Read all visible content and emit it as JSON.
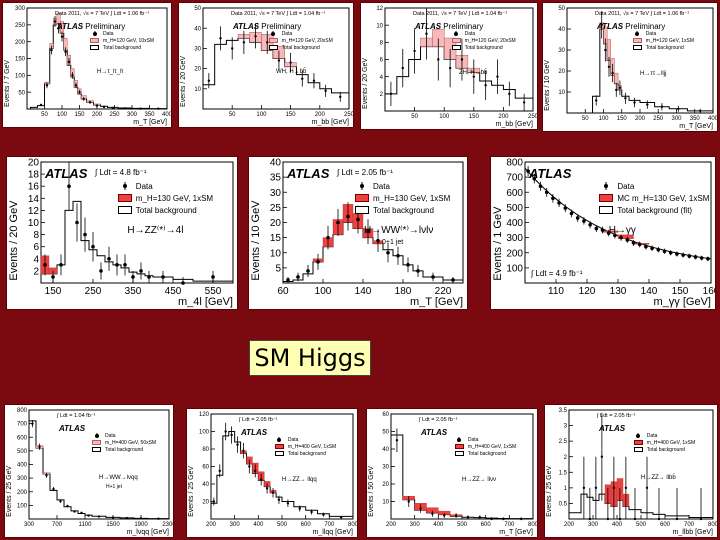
{
  "caption": "SM Higgs",
  "chart_data": [
    {
      "id": "p1",
      "type": "histogram",
      "atlas": "ATLAS",
      "atlas_extra": "Preliminary",
      "data_text": "Data 2011, √s = 7 TeV  ∫ Ldt = 1.06 fb⁻¹",
      "ylabel": "Events / 7 GeV",
      "xlabel": "m_T [GeV]",
      "process": "H→τ_lτ_h",
      "xlim": [
        0,
        400
      ],
      "ylim": [
        0,
        300
      ],
      "xticks": [
        50,
        100,
        150,
        200,
        250,
        300,
        350,
        400
      ],
      "yticks": [
        50,
        100,
        150,
        200,
        250,
        300
      ],
      "legend": [
        "Data",
        "m_H=120 GeV, 10xSM",
        "Total background"
      ],
      "bkg_edges": [
        10,
        30,
        50,
        65,
        75,
        85,
        95,
        105,
        115,
        125,
        135,
        145,
        155,
        170,
        190,
        210,
        230,
        260,
        300,
        350,
        400
      ],
      "bkg": [
        5,
        10,
        75,
        180,
        250,
        255,
        225,
        175,
        130,
        95,
        65,
        45,
        30,
        20,
        12,
        8,
        5,
        3,
        2,
        1
      ],
      "sig": [
        0,
        0,
        5,
        15,
        20,
        30,
        35,
        35,
        30,
        25,
        20,
        15,
        10,
        5,
        3,
        0,
        0,
        0,
        0,
        0
      ],
      "data_x": [
        40,
        57,
        70,
        80,
        90,
        100,
        110,
        120,
        130,
        140,
        150,
        162,
        180,
        200,
        220,
        245,
        280,
        325,
        375
      ],
      "data_y": [
        12,
        70,
        175,
        260,
        240,
        215,
        170,
        140,
        100,
        70,
        50,
        30,
        20,
        10,
        6,
        3,
        2,
        1,
        1
      ],
      "sig_color": "#f6b8b8"
    },
    {
      "id": "p2",
      "type": "histogram",
      "atlas": "ATLAS",
      "atlas_extra": "Preliminary",
      "data_text": "Data 2011, √s = 7 TeV  ∫ Ldt = 1.04 fb⁻¹",
      "ylabel": "Events / 20 GeV",
      "xlabel": "m_bb [GeV]",
      "process": "WH, H→bb̄",
      "xlim": [
        0,
        250
      ],
      "ylim": [
        0,
        50
      ],
      "xticks": [
        50,
        100,
        150,
        200,
        250
      ],
      "yticks": [
        10,
        20,
        30,
        40,
        50
      ],
      "legend": [
        "Data",
        "m_H=120 GeV, 20xSM",
        "Total background"
      ],
      "bkg_edges": [
        0,
        20,
        40,
        60,
        80,
        100,
        120,
        140,
        160,
        180,
        200,
        220,
        250
      ],
      "bkg": [
        12,
        32,
        34,
        35,
        33,
        29,
        25,
        21,
        17,
        13,
        10,
        8
      ],
      "sig": [
        0,
        0,
        0,
        2,
        5,
        8,
        6,
        2,
        0,
        0,
        0,
        0
      ],
      "data_x": [
        10,
        30,
        50,
        70,
        90,
        110,
        130,
        150,
        170,
        190,
        210,
        235
      ],
      "data_y": [
        14,
        35,
        30,
        33,
        36,
        33,
        24,
        23,
        15,
        14,
        9,
        6
      ],
      "sig_color": "#f6b8b8"
    },
    {
      "id": "p3",
      "type": "histogram",
      "atlas": "ATLAS",
      "atlas_extra": "Preliminary",
      "data_text": "Data 2011, √s = 7 TeV  ∫ Ldt = 1.04 fb⁻¹",
      "ylabel": "Events / 20 GeV",
      "xlabel": "m_bb [GeV]",
      "process": "ZH, H→bb̄",
      "xlim": [
        0,
        250
      ],
      "ylim": [
        0,
        12
      ],
      "xticks": [
        50,
        100,
        150,
        200,
        250
      ],
      "yticks": [
        2,
        4,
        6,
        8,
        10,
        12
      ],
      "legend": [
        "Data",
        "m_H=120 GeV, 20xSM",
        "Total background"
      ],
      "bkg_edges": [
        0,
        20,
        40,
        60,
        80,
        100,
        120,
        140,
        160,
        180,
        200,
        220,
        250
      ],
      "bkg": [
        2,
        4,
        6,
        7.5,
        7.5,
        6,
        5,
        4.5,
        3.5,
        3,
        2.5,
        1.5
      ],
      "sig": [
        0,
        0,
        0,
        1,
        2,
        2.5,
        1.5,
        0.5,
        0,
        0,
        0,
        0
      ],
      "data_x": [
        10,
        30,
        50,
        70,
        90,
        110,
        130,
        150,
        170,
        190,
        210,
        235
      ],
      "data_y": [
        2,
        5,
        7,
        9,
        6,
        5,
        6,
        4,
        3,
        4,
        2,
        1
      ],
      "sig_color": "#f6b8b8"
    },
    {
      "id": "p4",
      "type": "histogram",
      "atlas": "ATLAS",
      "atlas_extra": "Preliminary",
      "data_text": "Data 2011, √s = 7 TeV  ∫ Ldt = 1.06 fb⁻¹",
      "ylabel": "Events / 10 GeV",
      "xlabel": "m_T [GeV]",
      "process": "H→ττ→lljj",
      "xlim": [
        0,
        400
      ],
      "ylim": [
        0,
        50
      ],
      "xticks": [
        50,
        100,
        150,
        200,
        250,
        300,
        350,
        400
      ],
      "yticks": [
        10,
        20,
        30,
        40,
        50
      ],
      "legend": [
        "Data",
        "m_H=120 GeV, 1xSM",
        "Total background"
      ],
      "bkg_edges": [
        70,
        90,
        100,
        110,
        120,
        130,
        140,
        150,
        170,
        200,
        240,
        280,
        330,
        400
      ],
      "bkg": [
        8,
        40,
        33,
        25,
        18,
        14,
        11,
        8,
        6,
        5,
        3,
        2,
        1
      ],
      "sig": [
        0,
        3,
        8,
        10,
        8,
        5,
        2,
        0,
        0,
        0,
        0,
        0,
        0
      ],
      "data_x": [
        80,
        95,
        105,
        115,
        125,
        135,
        145,
        160,
        185,
        220,
        260,
        305,
        365
      ],
      "data_y": [
        6,
        42,
        30,
        22,
        19,
        11,
        12,
        7,
        5,
        4,
        3,
        2,
        1
      ],
      "sig_color": "#f6b8b8"
    },
    {
      "id": "p5",
      "type": "histogram",
      "atlas": "ATLAS",
      "atlas_extra": "",
      "data_text": "∫ Ldt = 4.8 fb⁻¹",
      "ylabel": "Events / 20 GeV",
      "xlabel": "m_4l [GeV]",
      "process": "H→ZZ⁽*⁾→4l",
      "xlim": [
        120,
        600
      ],
      "ylim": [
        0,
        20
      ],
      "xticks": [
        150,
        250,
        350,
        450,
        550
      ],
      "yticks": [
        2,
        4,
        6,
        8,
        10,
        12,
        14,
        16,
        18,
        20
      ],
      "legend": [
        "Data",
        "m_H=130 GeV, 1xSM",
        "Total background"
      ],
      "bkg_edges": [
        120,
        140,
        160,
        180,
        200,
        220,
        240,
        260,
        280,
        300,
        320,
        340,
        360,
        380,
        400,
        450,
        500,
        600
      ],
      "bkg": [
        1.5,
        1.5,
        3,
        12,
        13.5,
        7,
        5.5,
        4.5,
        3.5,
        3,
        2.5,
        1.8,
        1.5,
        1.2,
        1,
        0.6,
        0.3
      ],
      "sig": [
        3,
        1,
        0,
        0,
        0,
        0,
        0,
        0,
        0,
        0,
        0,
        0,
        0,
        0,
        0,
        0,
        0
      ],
      "data_x": [
        130,
        150,
        170,
        190,
        210,
        230,
        250,
        270,
        290,
        310,
        330,
        350,
        370,
        390,
        425,
        475,
        550
      ],
      "data_y": [
        3,
        1,
        3,
        16,
        10,
        8,
        6,
        2,
        4,
        3,
        3,
        1,
        2,
        1,
        1,
        0,
        1
      ],
      "sig_color": "#f04040"
    },
    {
      "id": "p6",
      "type": "histogram",
      "atlas": "ATLAS",
      "atlas_extra": "",
      "data_text": "∫ Ldt = 2.05 fb⁻¹",
      "ylabel": "Events / 10 GeV",
      "xlabel": "m_T [GeV]",
      "process": "H→WW⁽*⁾→lνlν",
      "process2": "0+1 jet",
      "xlim": [
        60,
        240
      ],
      "ylim": [
        0,
        40
      ],
      "xticks": [
        60,
        100,
        140,
        180,
        220
      ],
      "yticks": [
        5,
        10,
        15,
        20,
        25,
        30,
        35,
        40
      ],
      "legend": [
        "Data",
        "m_H=130 GeV, 1xSM",
        "Total background"
      ],
      "bkg_edges": [
        60,
        70,
        80,
        90,
        100,
        110,
        120,
        130,
        140,
        150,
        160,
        170,
        180,
        190,
        200,
        220,
        240
      ],
      "bkg": [
        0.5,
        1,
        3,
        7,
        12,
        16,
        20,
        18,
        15,
        13,
        11,
        9,
        6,
        4,
        2,
        1
      ],
      "sig": [
        0,
        0,
        0,
        1,
        3,
        5,
        6,
        5,
        3,
        1,
        0,
        0,
        0,
        0,
        0,
        0
      ],
      "data_x": [
        65,
        75,
        85,
        95,
        105,
        115,
        125,
        135,
        145,
        155,
        165,
        175,
        185,
        195,
        210,
        230
      ],
      "data_y": [
        1,
        2,
        4,
        7,
        15,
        20,
        22,
        21,
        17,
        14,
        10,
        9,
        6,
        4,
        2,
        1
      ],
      "sig_color": "#f04040"
    },
    {
      "id": "p7",
      "type": "histogram",
      "atlas": "ATLAS",
      "atlas_extra": "",
      "data_text": "∫ Ldt = 4.9 fb⁻¹",
      "ylabel": "Events / 1 GeV",
      "xlabel": "m_γγ [GeV]",
      "process": "H→γγ",
      "xlim": [
        100,
        160
      ],
      "ylim": [
        0,
        800
      ],
      "xticks": [
        110,
        120,
        130,
        140,
        150,
        160
      ],
      "yticks": [
        100,
        200,
        300,
        400,
        500,
        600,
        700,
        800
      ],
      "legend": [
        "Data",
        "MC m_H=130 GeV, 1xSM",
        "Total background (fit)"
      ],
      "bkg_edges": [
        100,
        105,
        110,
        115,
        120,
        125,
        130,
        135,
        140,
        145,
        150,
        155,
        160
      ],
      "bkg": [
        700,
        600,
        510,
        440,
        380,
        330,
        290,
        255,
        225,
        200,
        180,
        165
      ],
      "sig": [
        0,
        0,
        0,
        0,
        0,
        10,
        25,
        5,
        0,
        0,
        0,
        0
      ],
      "data_x": [
        101,
        103,
        105,
        107,
        109,
        111,
        113,
        115,
        117,
        119,
        121,
        123,
        125,
        127,
        129,
        131,
        133,
        135,
        137,
        139,
        141,
        143,
        145,
        147,
        149,
        151,
        153,
        155,
        157,
        159
      ],
      "data_y": [
        740,
        690,
        640,
        600,
        560,
        530,
        495,
        460,
        430,
        410,
        385,
        360,
        350,
        330,
        315,
        300,
        285,
        265,
        255,
        240,
        230,
        220,
        210,
        200,
        192,
        185,
        178,
        172,
        165,
        160
      ],
      "curve": true,
      "sig_color": "#f04040"
    },
    {
      "id": "p8",
      "type": "histogram",
      "atlas": "ATLAS",
      "atlas_extra": "",
      "data_text": "∫ Ldt = 1.04 fb⁻¹",
      "ylabel": "Events / 25 GeV",
      "xlabel": "m_lνqq [GeV]",
      "process": "H→WW→lνqq",
      "process2": "H+1 jet",
      "xlim": [
        300,
        2300
      ],
      "ylim": [
        0,
        800
      ],
      "xticks": [
        300,
        700,
        1100,
        1500,
        1900,
        2300
      ],
      "yticks": [
        100,
        200,
        300,
        400,
        500,
        600,
        700,
        800
      ],
      "legend": [
        "Data",
        "m_H=400 GeV, 50xSM",
        "Total background"
      ],
      "bkg_edges": [
        300,
        400,
        500,
        600,
        700,
        800,
        900,
        1000,
        1100,
        1200,
        1400,
        1600,
        1800,
        2000,
        2300
      ],
      "bkg": [
        720,
        520,
        330,
        210,
        140,
        90,
        60,
        40,
        28,
        20,
        12,
        8,
        5,
        3
      ],
      "sig": [
        0,
        20,
        10,
        0,
        0,
        0,
        0,
        0,
        0,
        0,
        0,
        0,
        0,
        0
      ],
      "data_x": [
        350,
        450,
        550,
        650,
        750,
        850,
        950,
        1050,
        1150,
        1300,
        1500,
        1700,
        1900,
        2150
      ],
      "data_y": [
        700,
        530,
        320,
        220,
        130,
        95,
        55,
        45,
        25,
        18,
        10,
        7,
        4,
        2
      ],
      "sig_color": "#f6b8b8"
    },
    {
      "id": "p9",
      "type": "histogram",
      "atlas": "ATLAS",
      "atlas_extra": "",
      "data_text": "∫ Ldt = 2.05 fb⁻¹",
      "ylabel": "Events / 25 GeV",
      "xlabel": "m_llqq [GeV]",
      "process": "H→ZZ→ llqq",
      "xlim": [
        200,
        800
      ],
      "ylim": [
        0,
        120
      ],
      "xticks": [
        200,
        300,
        400,
        500,
        600,
        700,
        800
      ],
      "yticks": [
        20,
        40,
        60,
        80,
        100,
        120
      ],
      "legend": [
        "Data",
        "m_H=400 GeV, 1xSM",
        "Total background"
      ],
      "bkg_edges": [
        200,
        225,
        250,
        275,
        300,
        325,
        350,
        375,
        400,
        425,
        450,
        475,
        500,
        550,
        600,
        650,
        700,
        800
      ],
      "bkg": [
        18,
        50,
        95,
        100,
        88,
        75,
        63,
        52,
        44,
        37,
        30,
        25,
        20,
        14,
        10,
        6,
        3
      ],
      "sig": [
        0,
        0,
        0,
        0,
        0,
        3,
        8,
        12,
        10,
        6,
        3,
        0,
        0,
        0,
        0,
        0,
        0
      ],
      "data_x": [
        212,
        237,
        262,
        287,
        312,
        337,
        362,
        387,
        412,
        437,
        462,
        487,
        525,
        575,
        625,
        675,
        750
      ],
      "data_y": [
        20,
        55,
        100,
        96,
        85,
        78,
        60,
        55,
        45,
        35,
        30,
        22,
        18,
        12,
        8,
        5,
        2
      ],
      "sig_color": "#f04040"
    },
    {
      "id": "p10",
      "type": "histogram",
      "atlas": "ATLAS",
      "atlas_extra": "",
      "data_text": "∫ Ldt = 2.05 fb⁻¹",
      "ylabel": "Events / 50 GeV",
      "xlabel": "m_T [GeV]",
      "process": "H→ZZ→ llνν",
      "xlim": [
        200,
        800
      ],
      "ylim": [
        0,
        60
      ],
      "xticks": [
        200,
        300,
        400,
        500,
        600,
        700,
        800
      ],
      "yticks": [
        10,
        20,
        30,
        40,
        50,
        60
      ],
      "legend": [
        "Data",
        "m_H=400 GeV, 1xSM",
        "Total background"
      ],
      "bkg_edges": [
        200,
        250,
        300,
        350,
        400,
        450,
        500,
        550,
        600,
        650,
        700,
        800
      ],
      "bkg": [
        48,
        11,
        5,
        3.5,
        2.5,
        1.5,
        1,
        0.8,
        0.5,
        0.3,
        0.2
      ],
      "sig": [
        0,
        2,
        4,
        3,
        2,
        1,
        0,
        0,
        0,
        0,
        0
      ],
      "data_x": [
        225,
        275,
        325,
        375,
        425,
        475,
        525,
        575,
        625,
        675,
        750
      ],
      "data_y": [
        45,
        10,
        6,
        3,
        2,
        2,
        1,
        1,
        0,
        0,
        0
      ],
      "sig_color": "#f04040"
    },
    {
      "id": "p11",
      "type": "histogram",
      "atlas": "ATLAS",
      "atlas_extra": "",
      "data_text": "∫ Ldt = 2.05 fb⁻¹",
      "ylabel": "Events / 25 GeV",
      "xlabel": "m_llbb [GeV]",
      "process": "H→ZZ→ llbb̄",
      "xlim": [
        200,
        800
      ],
      "ylim": [
        0,
        3.5
      ],
      "xticks": [
        200,
        300,
        400,
        500,
        600,
        700,
        800
      ],
      "yticks": [
        0.5,
        1,
        1.5,
        2,
        2.5,
        3,
        3.5
      ],
      "legend": [
        "Data",
        "m_H=400 GeV, 1xSM",
        "Total background"
      ],
      "bkg_edges": [
        200,
        250,
        275,
        300,
        325,
        350,
        375,
        400,
        425,
        450,
        500,
        550,
        600,
        700,
        800
      ],
      "bkg": [
        0.2,
        0.8,
        0.7,
        0.6,
        0.8,
        0.5,
        0.4,
        0.6,
        0.4,
        0.3,
        0.2,
        0.15,
        0.1,
        0.05
      ],
      "sig": [
        0,
        0,
        0,
        0,
        0,
        0.6,
        0.8,
        0.7,
        0.4,
        0,
        0,
        0,
        0,
        0
      ],
      "data_x": [
        262,
        287,
        312,
        337,
        362,
        387,
        412,
        437,
        475,
        525,
        575,
        650,
        750
      ],
      "data_y": [
        1,
        0,
        1,
        2,
        0,
        1,
        0,
        1,
        0,
        1,
        0,
        0,
        0
      ],
      "sig_color": "#f04040"
    }
  ]
}
